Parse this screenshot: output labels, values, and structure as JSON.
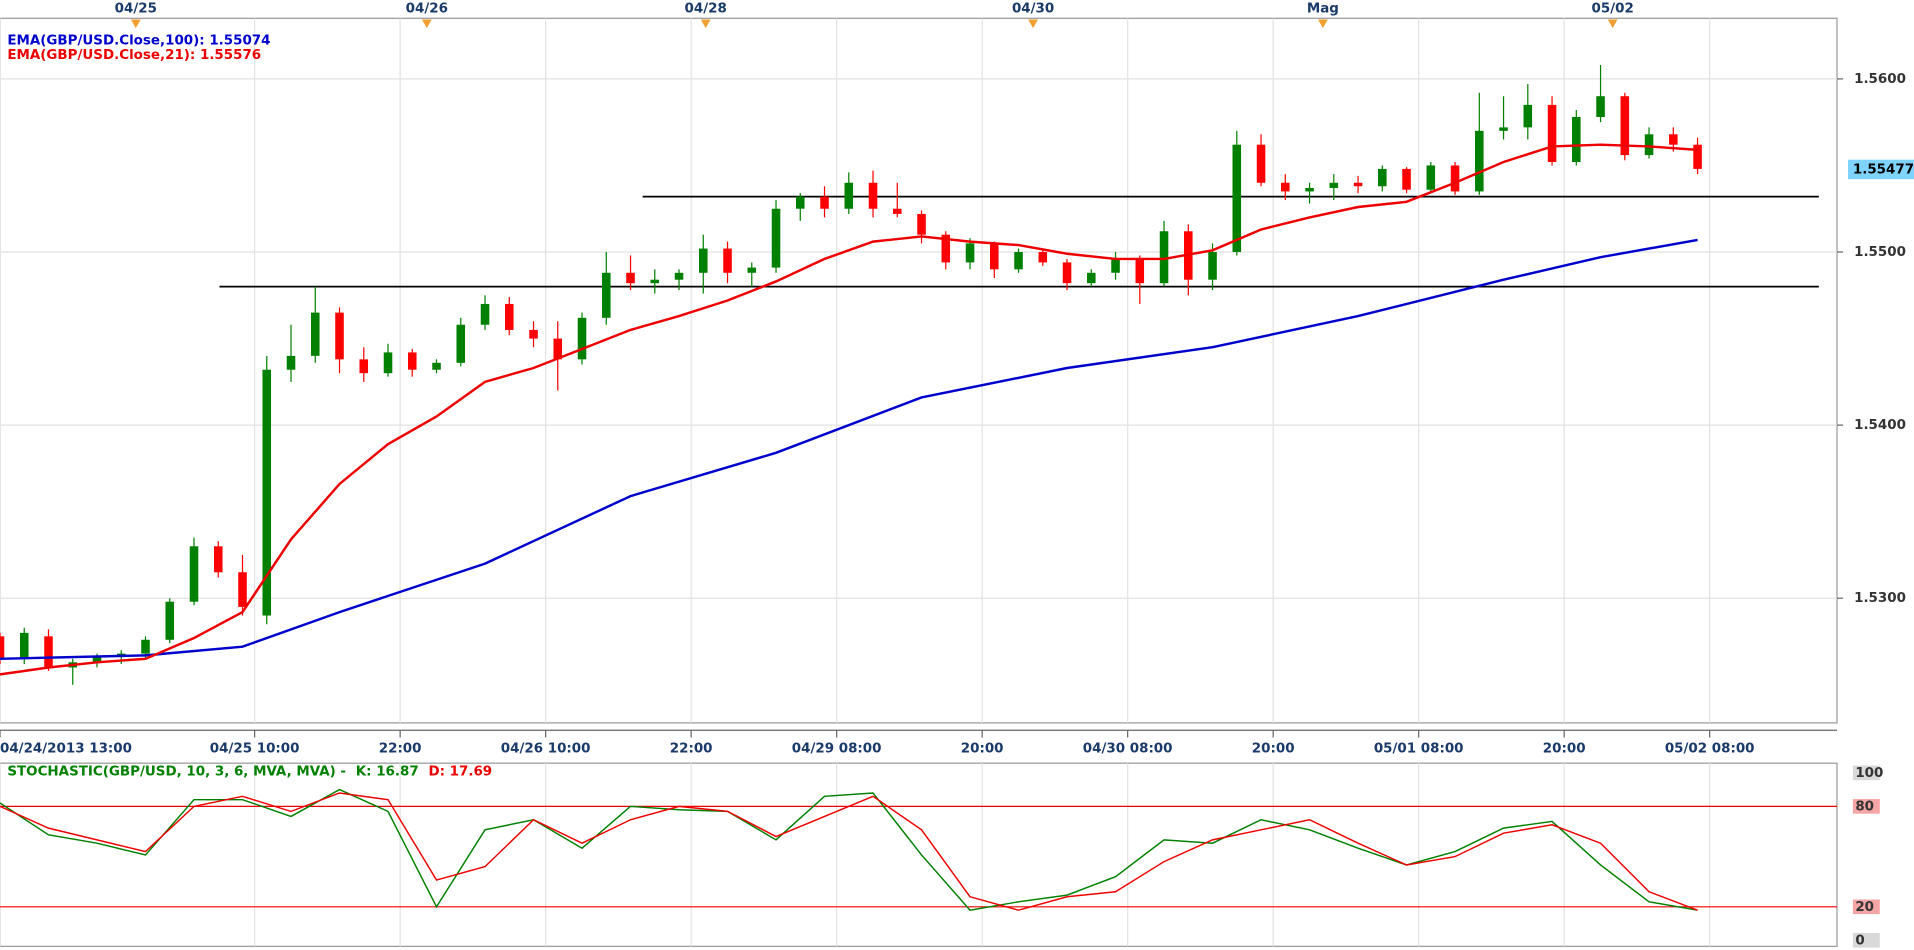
{
  "chart_data": [
    {
      "type": "candlestick",
      "xlim": [
        0,
        151.5
      ],
      "ylim": [
        1.5228,
        1.5635
      ],
      "yticks": [
        {
          "value": 1.53,
          "label": "1.5300"
        },
        {
          "value": 1.54,
          "label": "1.5400"
        },
        {
          "value": 1.55,
          "label": "1.5500"
        },
        {
          "value": 1.56,
          "label": "1.5600"
        }
      ],
      "xticks": [
        {
          "value": 0,
          "label": "04/24/2013 13:00"
        },
        {
          "value": 21,
          "label": "04/25 10:00"
        },
        {
          "value": 33,
          "label": "22:00"
        },
        {
          "value": 45,
          "label": "04/26 10:00"
        },
        {
          "value": 57,
          "label": "22:00"
        },
        {
          "value": 69,
          "label": "04/29 08:00"
        },
        {
          "value": 81,
          "label": "20:00"
        },
        {
          "value": 93,
          "label": "04/30 08:00"
        },
        {
          "value": 105,
          "label": "20:00"
        },
        {
          "value": 117,
          "label": "05/01 08:00"
        },
        {
          "value": 129,
          "label": "20:00"
        },
        {
          "value": 141,
          "label": "05/02 08:00"
        }
      ],
      "top_ticks": [
        {
          "value": 11.2,
          "label": "04/25"
        },
        {
          "value": 35.2,
          "label": "04/26"
        },
        {
          "value": 58.2,
          "label": "04/28"
        },
        {
          "value": 85.2,
          "label": "04/30"
        },
        {
          "value": 109.1,
          "label": "Mag"
        },
        {
          "value": 133,
          "label": "05/02"
        }
      ],
      "grid": true,
      "up_color": "#008000",
      "down_color": "#ff0000",
      "x": [
        0,
        2,
        4,
        6,
        8,
        10,
        12,
        14,
        16,
        18,
        20,
        22,
        24,
        26,
        28,
        30,
        32,
        34,
        36,
        38,
        40,
        42,
        44,
        46,
        48,
        50,
        52,
        54,
        56,
        58,
        60,
        62,
        64,
        66,
        68,
        70,
        72,
        74,
        76,
        78,
        80,
        82,
        84,
        86,
        88,
        90,
        92,
        94,
        96,
        98,
        100,
        102,
        104,
        106,
        108,
        110,
        112,
        114,
        116,
        118,
        120,
        122,
        124,
        126,
        128,
        130,
        132,
        134,
        136,
        138,
        140
      ],
      "open": [
        1.5278,
        1.5265,
        1.5278,
        1.526,
        1.5263,
        1.5266,
        1.5268,
        1.5276,
        1.5298,
        1.533,
        1.5315,
        1.529,
        1.5432,
        1.544,
        1.5465,
        1.5438,
        1.543,
        1.5442,
        1.5432,
        1.5436,
        1.5458,
        1.547,
        1.5455,
        1.545,
        1.5438,
        1.5462,
        1.5488,
        1.5482,
        1.5484,
        1.5488,
        1.5502,
        1.5488,
        1.5491,
        1.5525,
        1.5532,
        1.5525,
        1.554,
        1.5525,
        1.5522,
        1.551,
        1.5494,
        1.5505,
        1.549,
        1.55,
        1.5494,
        1.5482,
        1.5488,
        1.5496,
        1.5482,
        1.5512,
        1.5484,
        1.55,
        1.5562,
        1.554,
        1.5535,
        1.5537,
        1.554,
        1.5538,
        1.5548,
        1.5536,
        1.555,
        1.5535,
        1.557,
        1.5572,
        1.5585,
        1.5552,
        1.5578,
        1.559,
        1.5556,
        1.5568,
        1.5562
      ],
      "high": [
        1.528,
        1.5283,
        1.5282,
        1.5265,
        1.5268,
        1.527,
        1.5278,
        1.53,
        1.5335,
        1.5333,
        1.5325,
        1.544,
        1.5458,
        1.548,
        1.5468,
        1.5445,
        1.5447,
        1.5444,
        1.5438,
        1.5462,
        1.5475,
        1.5474,
        1.546,
        1.546,
        1.5465,
        1.55,
        1.5498,
        1.549,
        1.549,
        1.551,
        1.5506,
        1.5494,
        1.553,
        1.5534,
        1.5538,
        1.5546,
        1.5547,
        1.554,
        1.5524,
        1.5512,
        1.5508,
        1.5506,
        1.5502,
        1.5502,
        1.5496,
        1.549,
        1.55,
        1.5498,
        1.5518,
        1.5516,
        1.5505,
        1.557,
        1.5568,
        1.5545,
        1.554,
        1.5545,
        1.5544,
        1.555,
        1.5549,
        1.5552,
        1.5552,
        1.5592,
        1.559,
        1.5597,
        1.559,
        1.5582,
        1.5608,
        1.5592,
        1.5572,
        1.5572,
        1.5566
      ],
      "low": [
        1.5262,
        1.5262,
        1.5258,
        1.525,
        1.526,
        1.5262,
        1.5265,
        1.5274,
        1.5296,
        1.5312,
        1.529,
        1.5285,
        1.5425,
        1.5436,
        1.543,
        1.5425,
        1.5428,
        1.5428,
        1.543,
        1.5434,
        1.5455,
        1.5452,
        1.5445,
        1.542,
        1.5435,
        1.5458,
        1.5478,
        1.5476,
        1.5478,
        1.5476,
        1.5482,
        1.548,
        1.5488,
        1.5518,
        1.552,
        1.5522,
        1.552,
        1.552,
        1.5505,
        1.549,
        1.549,
        1.5485,
        1.5488,
        1.5492,
        1.5478,
        1.548,
        1.5484,
        1.547,
        1.548,
        1.5475,
        1.5478,
        1.5498,
        1.5538,
        1.553,
        1.5528,
        1.553,
        1.5534,
        1.5535,
        1.5534,
        1.5534,
        1.5533,
        1.5533,
        1.5565,
        1.5565,
        1.555,
        1.555,
        1.5575,
        1.5553,
        1.5554,
        1.5558,
        1.5545
      ],
      "close": [
        1.5265,
        1.528,
        1.526,
        1.5263,
        1.5266,
        1.5268,
        1.5276,
        1.5298,
        1.533,
        1.5315,
        1.5295,
        1.5432,
        1.544,
        1.5465,
        1.5438,
        1.543,
        1.5442,
        1.5432,
        1.5436,
        1.5458,
        1.547,
        1.5455,
        1.545,
        1.5438,
        1.5462,
        1.5488,
        1.5482,
        1.5484,
        1.5488,
        1.5502,
        1.5488,
        1.5491,
        1.5525,
        1.5532,
        1.5525,
        1.554,
        1.5525,
        1.5522,
        1.551,
        1.5494,
        1.5505,
        1.549,
        1.55,
        1.5494,
        1.5482,
        1.5488,
        1.5496,
        1.5482,
        1.5512,
        1.5484,
        1.55,
        1.5562,
        1.554,
        1.5535,
        1.5537,
        1.554,
        1.5538,
        1.5548,
        1.5536,
        1.555,
        1.5535,
        1.557,
        1.5572,
        1.5585,
        1.5552,
        1.5578,
        1.559,
        1.5556,
        1.5568,
        1.5562,
        1.5548
      ],
      "series": [
        {
          "name": "EMA(GBP/USD.Close,100): 1.55074",
          "color": "#0000cc",
          "x": [
            0,
            12,
            20,
            28,
            40,
            52,
            64,
            76,
            88,
            100,
            112,
            124,
            132,
            140
          ],
          "values": [
            1.5265,
            1.5267,
            1.5272,
            1.5292,
            1.532,
            1.5359,
            1.5384,
            1.5416,
            1.5433,
            1.5445,
            1.5463,
            1.5484,
            1.5497,
            1.5507
          ]
        },
        {
          "name": "EMA(GBP/USD.Close,21): 1.55576",
          "color": "#ee0000",
          "x": [
            0,
            4,
            8,
            12,
            16,
            20,
            24,
            28,
            32,
            36,
            40,
            44,
            48,
            52,
            56,
            60,
            64,
            68,
            72,
            76,
            80,
            84,
            88,
            92,
            96,
            100,
            104,
            108,
            112,
            116,
            120,
            124,
            128,
            132,
            136,
            140
          ],
          "values": [
            1.5256,
            1.526,
            1.5263,
            1.5265,
            1.5277,
            1.5292,
            1.5334,
            1.5366,
            1.5389,
            1.5405,
            1.5425,
            1.5433,
            1.5444,
            1.5455,
            1.5463,
            1.5472,
            1.5483,
            1.5496,
            1.5506,
            1.5509,
            1.5506,
            1.5504,
            1.5499,
            1.5496,
            1.5496,
            1.5501,
            1.5513,
            1.552,
            1.5526,
            1.5529,
            1.554,
            1.5552,
            1.5561,
            1.5562,
            1.5561,
            1.5559
          ]
        }
      ],
      "hlines": [
        {
          "value": 1.5532,
          "x": [
            53,
            150
          ]
        },
        {
          "value": 1.548,
          "x": [
            18.1,
            150
          ]
        }
      ],
      "current_price": 1.55477,
      "current_price_color": "#7fd4ff"
    },
    {
      "type": "line",
      "title": "STOCHASTIC(GBP/USD, 10, 3, 6, MVA, MVA) -",
      "xlim": [
        0,
        151.5
      ],
      "ylim": [
        -3.6,
        105.8
      ],
      "yticks": [
        0,
        20,
        80,
        100
      ],
      "ref_lines": [
        20,
        80
      ],
      "ref_color": "#ee0000",
      "series": [
        {
          "name": "K: 16.87",
          "color": "#008000",
          "x": [
            0,
            4,
            8,
            12,
            16,
            20,
            24,
            28,
            32,
            36,
            40,
            44,
            48,
            52,
            56,
            60,
            64,
            68,
            72,
            76,
            80,
            84,
            88,
            92,
            96,
            100,
            104,
            108,
            112,
            116,
            120,
            124,
            128,
            132,
            136,
            140
          ],
          "values": [
            82,
            63,
            58,
            51,
            84,
            84,
            74,
            90,
            77,
            20,
            66,
            72,
            55,
            80,
            78,
            77,
            60,
            86,
            88,
            51,
            18,
            23,
            27,
            38,
            60,
            58,
            72,
            66,
            55,
            45,
            53,
            67,
            71,
            45,
            23,
            18
          ]
        },
        {
          "name": "D: 17.69",
          "color": "#ee0000",
          "x": [
            0,
            4,
            8,
            12,
            16,
            20,
            24,
            28,
            32,
            36,
            40,
            44,
            48,
            52,
            56,
            60,
            64,
            68,
            72,
            76,
            80,
            84,
            88,
            92,
            96,
            100,
            104,
            108,
            112,
            116,
            120,
            124,
            128,
            132,
            136,
            140
          ],
          "values": [
            80,
            67,
            60,
            53,
            80,
            86,
            77,
            88,
            84,
            36,
            44,
            72,
            58,
            72,
            80,
            77,
            62,
            74,
            86,
            66,
            26,
            18,
            26,
            29,
            47,
            60,
            66,
            72,
            58,
            45,
            50,
            64,
            69,
            58,
            29,
            18
          ]
        }
      ]
    }
  ]
}
